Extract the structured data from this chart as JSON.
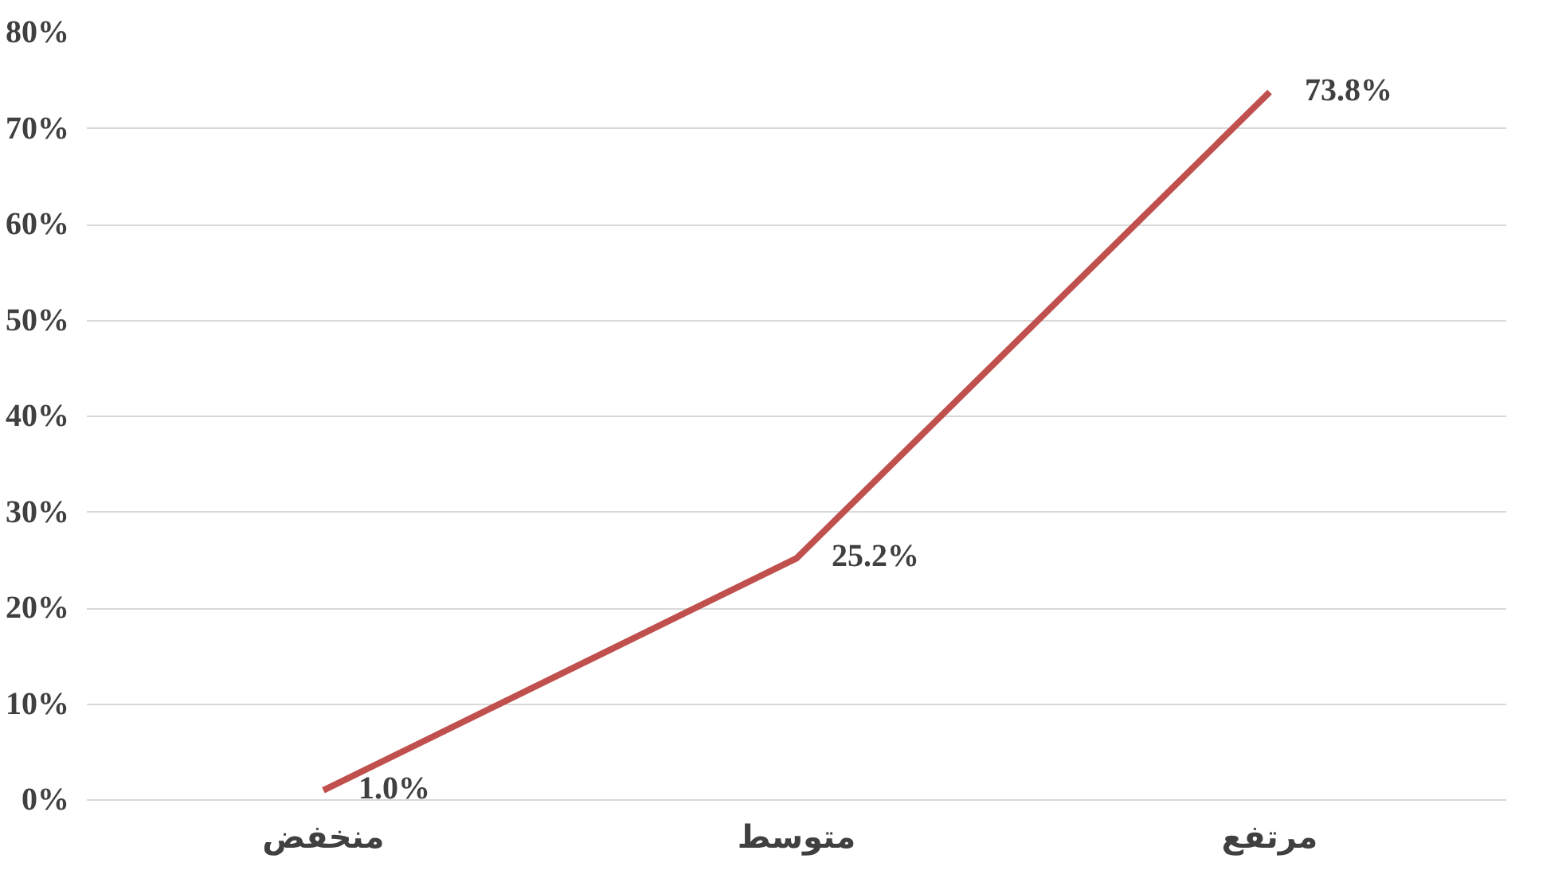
{
  "chart_data": {
    "type": "line",
    "categories": [
      "منخفض",
      "متوسط",
      "مرتفع"
    ],
    "series": [
      {
        "color": "#c0504d",
        "values": [
          1.0,
          25.2,
          73.8
        ],
        "value_labels": [
          "1.0%",
          "25.2%",
          "73.8%"
        ]
      }
    ],
    "ylim": [
      0,
      80
    ],
    "yticks": [
      {
        "value": 0,
        "label": "0%"
      },
      {
        "value": 10,
        "label": "10%"
      },
      {
        "value": 20,
        "label": "20%"
      },
      {
        "value": 30,
        "label": "30%"
      },
      {
        "value": 40,
        "label": "40%"
      },
      {
        "value": 50,
        "label": "50%"
      },
      {
        "value": 60,
        "label": "60%"
      },
      {
        "value": 70,
        "label": "70%"
      },
      {
        "value": 80,
        "label": "80%"
      }
    ],
    "grid": "y",
    "marker": "none",
    "line_style": "solid"
  }
}
